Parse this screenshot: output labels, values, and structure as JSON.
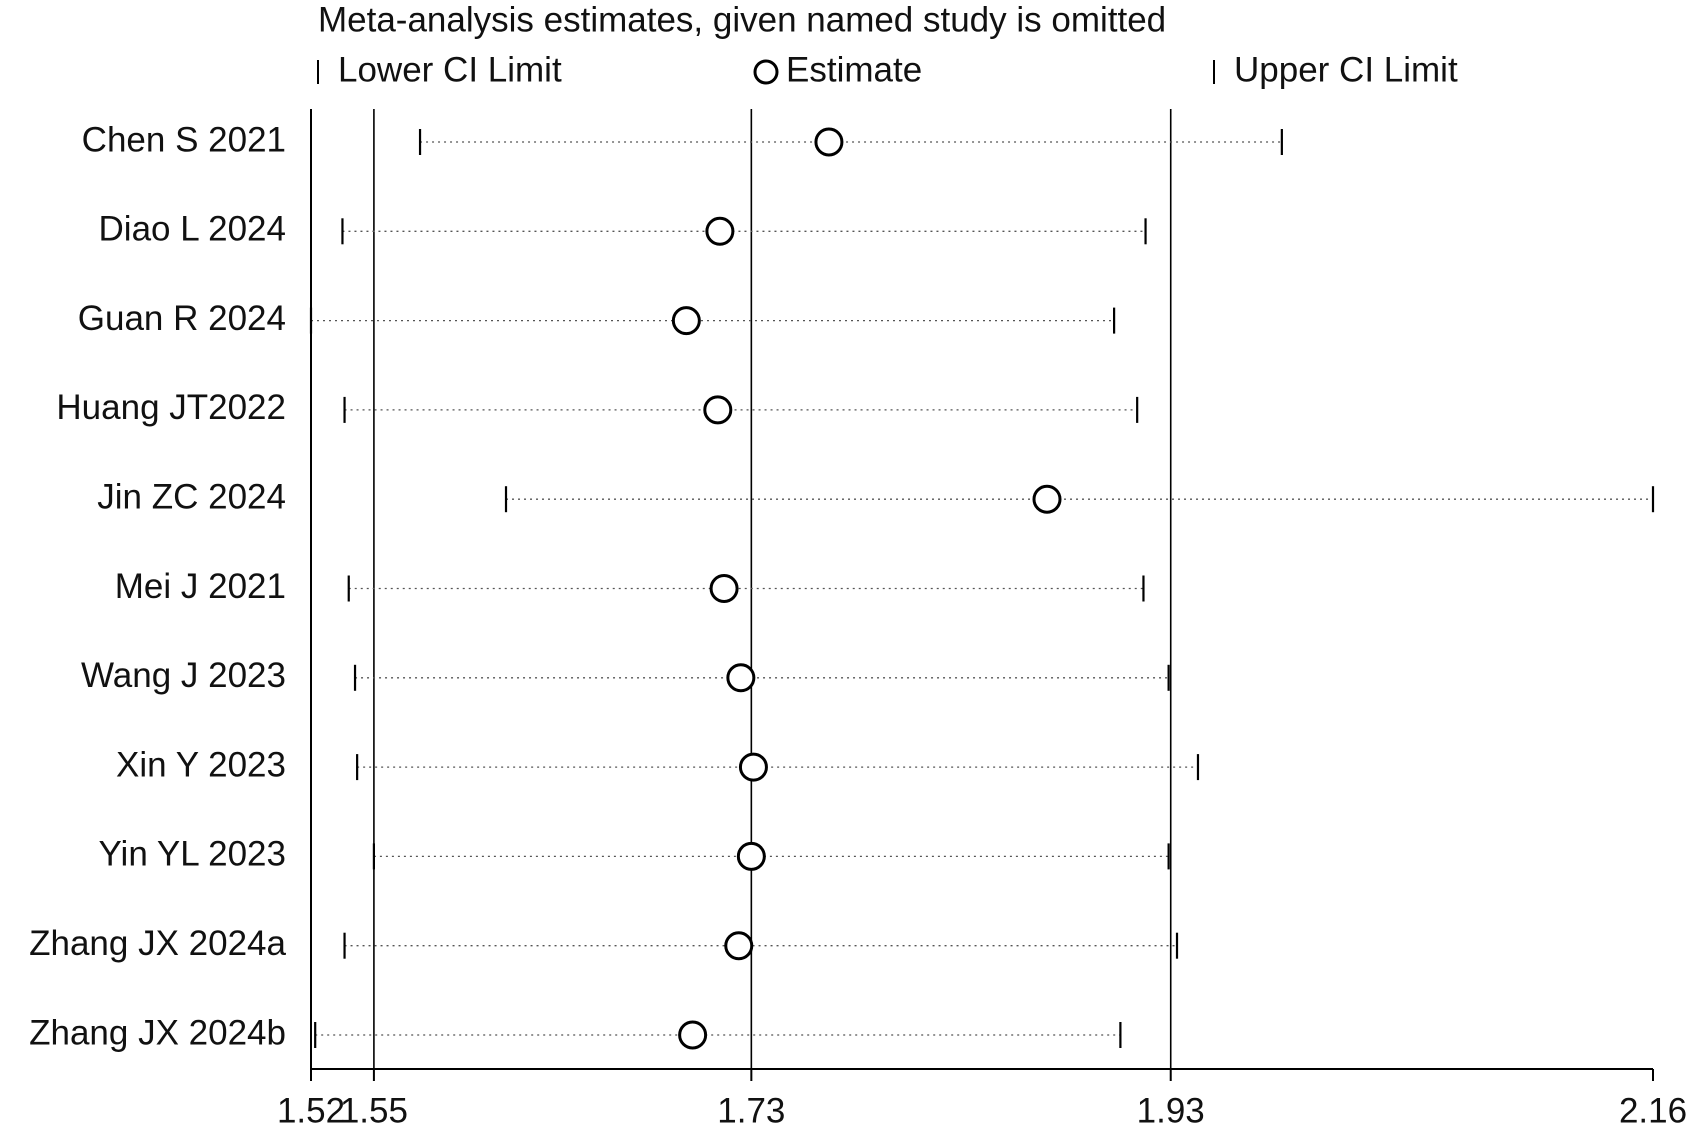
{
  "chart_data": {
    "type": "forest",
    "title": "Meta-analysis estimates, given named study is omitted",
    "categories": [
      "Chen S 2021",
      "Diao L 2024",
      "Guan R 2024",
      "Huang JT2022",
      "Jin ZC 2024",
      "Mei J 2021",
      "Wang J 2023",
      "Xin Y 2023",
      "Yin YL 2023",
      "Zhang JX 2024a",
      "Zhang JX 2024b"
    ],
    "series": [
      {
        "name": "Lower CI Limit",
        "color": "#000000",
        "values": [
          1.572,
          1.535,
          1.52,
          1.536,
          1.613,
          1.538,
          1.541,
          1.542,
          1.55,
          1.536,
          1.522
        ]
      },
      {
        "name": "Estimate",
        "color": "#000000",
        "values": [
          1.767,
          1.715,
          1.699,
          1.714,
          1.871,
          1.717,
          1.725,
          1.731,
          1.73,
          1.724,
          1.702
        ]
      },
      {
        "name": "Upper CI Limit",
        "color": "#000000",
        "values": [
          1.983,
          1.918,
          1.903,
          1.914,
          2.16,
          1.917,
          1.929,
          1.943,
          1.929,
          1.933,
          1.906
        ]
      }
    ],
    "reference_lines": [
      1.55,
      1.73,
      1.93
    ],
    "xlim": [
      1.52,
      2.16
    ],
    "xticks": [
      1.52,
      1.55,
      1.73,
      1.93,
      2.16
    ]
  }
}
